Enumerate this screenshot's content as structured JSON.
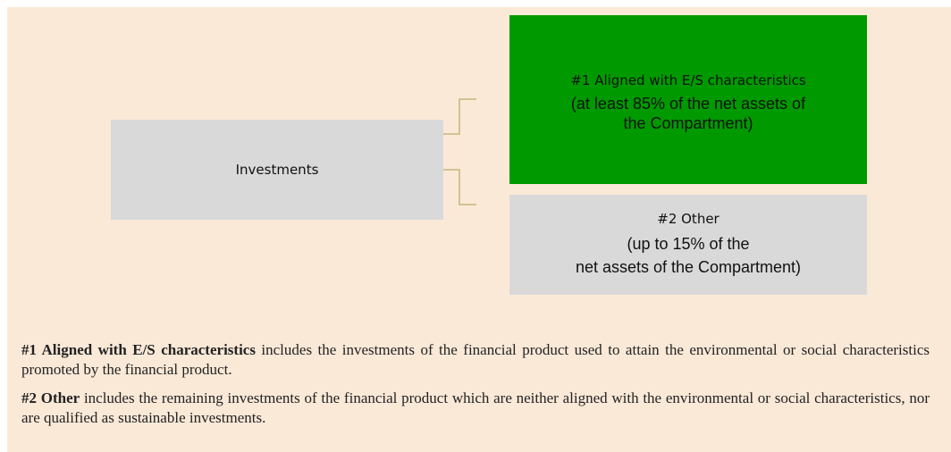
{
  "nodes": [
    {
      "label": "Investments"
    },
    {
      "label": "#1 Aligned with E/S characteristics",
      "lines": [
        "(at least 85% of the net assets of",
        "the Compartment)"
      ]
    },
    {
      "label": "#2 Other",
      "lines": [
        "(up to 15% of the",
        "net assets of the Compartment)"
      ]
    }
  ],
  "notes": [
    {
      "term": "#1 Aligned with E/S characteristics",
      "text": " includes the investments of the financial product used to attain the environmental or social characteristics promoted by the financial product."
    },
    {
      "term": "#2 Other",
      "text": " includes the remaining investments of the financial product which are neither aligned with the environmental or social characteristics, nor are qualified as sustainable investments."
    }
  ]
}
